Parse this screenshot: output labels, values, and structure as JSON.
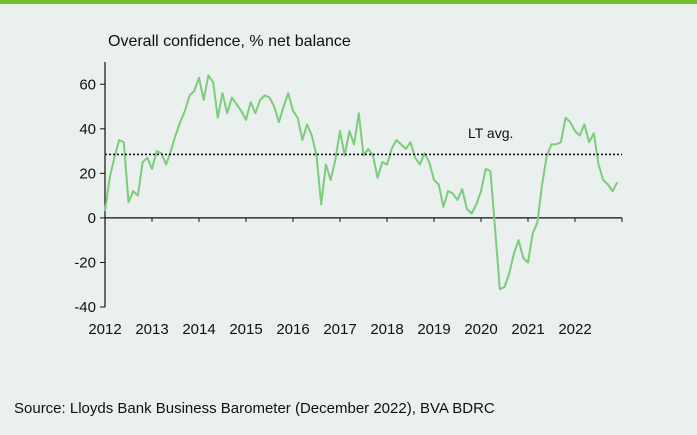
{
  "chart_data": {
    "type": "line",
    "title": "Overall confidence, % net balance",
    "xlabel": "",
    "ylabel": "",
    "ylim": [
      -40,
      70
    ],
    "yticks": [
      60,
      40,
      20,
      0,
      -20,
      -40
    ],
    "xlim": [
      2012.0,
      2023.0
    ],
    "x_tick_labels": [
      "2012",
      "2013",
      "2014",
      "2015",
      "2016",
      "2017",
      "2018",
      "2019",
      "2020",
      "2021",
      "2022"
    ],
    "series": [
      {
        "name": "",
        "color": "#7ccc7c",
        "x": [
          2012.0,
          2012.1,
          2012.2,
          2012.3,
          2012.4,
          2012.5,
          2012.6,
          2012.7,
          2012.8,
          2012.9,
          2013.0,
          2013.1,
          2013.2,
          2013.3,
          2013.4,
          2013.5,
          2013.6,
          2013.7,
          2013.8,
          2013.9,
          2014.0,
          2014.1,
          2014.2,
          2014.3,
          2014.4,
          2014.5,
          2014.6,
          2014.7,
          2014.8,
          2014.9,
          2015.0,
          2015.1,
          2015.2,
          2015.3,
          2015.4,
          2015.5,
          2015.6,
          2015.7,
          2015.8,
          2015.9,
          2016.0,
          2016.1,
          2016.2,
          2016.3,
          2016.4,
          2016.5,
          2016.6,
          2016.7,
          2016.8,
          2016.9,
          2017.0,
          2017.1,
          2017.2,
          2017.3,
          2017.4,
          2017.5,
          2017.6,
          2017.7,
          2017.8,
          2017.9,
          2018.0,
          2018.1,
          2018.2,
          2018.3,
          2018.4,
          2018.5,
          2018.6,
          2018.7,
          2018.8,
          2018.9,
          2019.0,
          2019.1,
          2019.2,
          2019.3,
          2019.4,
          2019.5,
          2019.6,
          2019.7,
          2019.8,
          2019.9,
          2020.0,
          2020.1,
          2020.2,
          2020.3,
          2020.4,
          2020.5,
          2020.6,
          2020.7,
          2020.8,
          2020.9,
          2021.0,
          2021.1,
          2021.2,
          2021.3,
          2021.4,
          2021.5,
          2021.6,
          2021.7,
          2021.8,
          2021.9,
          2022.0,
          2022.1,
          2022.2,
          2022.3,
          2022.4,
          2022.5,
          2022.6,
          2022.7,
          2022.8,
          2022.9
        ],
        "values": [
          3,
          18,
          27,
          35,
          34,
          7,
          12,
          10,
          25,
          27,
          22,
          30,
          29,
          24,
          30,
          37,
          43,
          48,
          55,
          57,
          63,
          53,
          64,
          61,
          45,
          56,
          47,
          54,
          51,
          48,
          44,
          52,
          47,
          53,
          55,
          54,
          50,
          43,
          50,
          56,
          48,
          45,
          35,
          42,
          37,
          28,
          6,
          24,
          17,
          26,
          39,
          28,
          39,
          33,
          47,
          28,
          31,
          28,
          18,
          25,
          24,
          31,
          35,
          33,
          31,
          34,
          27,
          24,
          29,
          25,
          17,
          15,
          5,
          12,
          11,
          8,
          13,
          4,
          2,
          6,
          12,
          22,
          21,
          -5,
          -32,
          -31,
          -25,
          -16,
          -10,
          -18,
          -20,
          -7,
          -2,
          15,
          28,
          33,
          33,
          34,
          45,
          43,
          39,
          37,
          42,
          34,
          38,
          24,
          17,
          15,
          12,
          16
        ]
      },
      {
        "name": "LT avg.",
        "color": "#111111",
        "style": "dotted",
        "x": [
          2012.0,
          2023.0
        ],
        "values": [
          28.5,
          28.5
        ]
      }
    ],
    "annotations": [
      "LT avg."
    ],
    "grid": false,
    "legend": "none"
  },
  "source": "Source: Lloyds Bank Business Barometer (December 2022), BVA BDRC"
}
